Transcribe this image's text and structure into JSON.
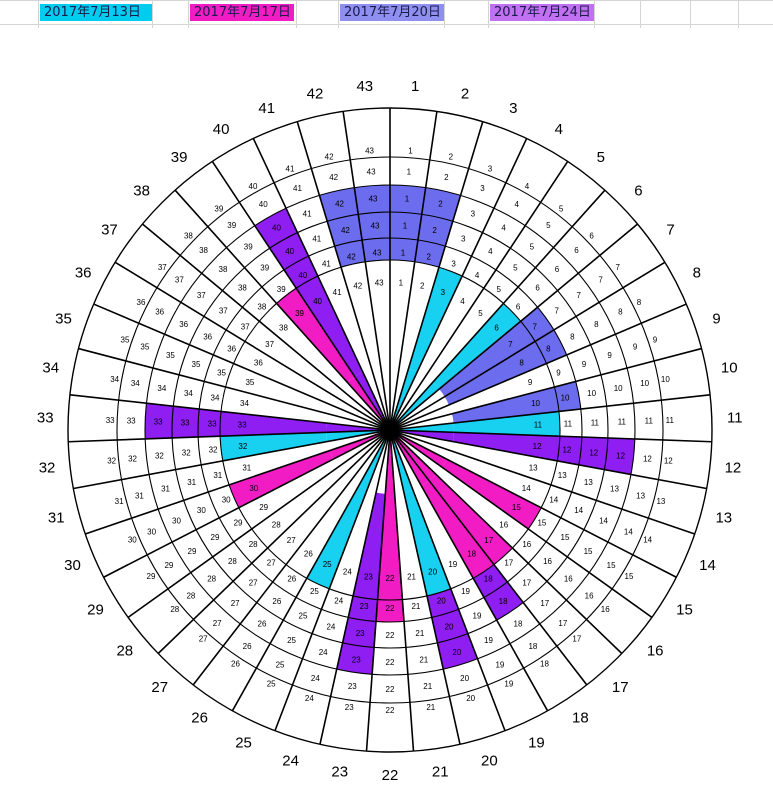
{
  "legend": [
    {
      "label": "2017年7月13日",
      "color": "#00CCF0"
    },
    {
      "label": "2017年7月17日",
      "color": "#F21CC4"
    },
    {
      "label": "2017年7月20日",
      "color": "#8F8FF0"
    },
    {
      "label": "2017年7月24日",
      "color": "#C070F0"
    }
  ],
  "wheel": {
    "sectors": 43,
    "rings": [
      "ring-1",
      "ring-2",
      "ring-3",
      "ring-4",
      "ring-5",
      "ring-6",
      "ring-7"
    ],
    "ring_colors": {
      "cyan": "#18D0F0",
      "magenta": "#F21CC4",
      "blue": "#6C6CEE",
      "purple": "#8E1EF2"
    },
    "fills": [
      {
        "color": "blue",
        "ring": 5,
        "sectors": [
          1,
          2,
          42,
          43
        ]
      },
      {
        "color": "blue",
        "ring": 4,
        "sectors": [
          1,
          2,
          42,
          43
        ]
      },
      {
        "color": "blue",
        "ring": 3,
        "sectors": [
          1,
          2,
          42,
          43
        ]
      },
      {
        "color": "blue",
        "ring": 3,
        "sectors": [
          7,
          8
        ]
      },
      {
        "color": "blue",
        "ring": 2,
        "sectors": [
          7,
          8
        ]
      },
      {
        "color": "blue",
        "ring": 3,
        "sectors": [
          10
        ]
      },
      {
        "color": "blue",
        "ring": 2,
        "sectors": [
          10
        ]
      },
      {
        "color": "cyan",
        "ring": 2,
        "sectors": [
          3,
          6,
          11,
          20,
          25,
          32
        ]
      },
      {
        "color": "cyan",
        "ring": 1,
        "sectors": [
          3,
          6,
          11,
          20,
          25,
          32
        ]
      },
      {
        "color": "magenta",
        "ring": 2,
        "sectors": [
          15,
          17,
          18,
          22,
          30,
          39
        ]
      },
      {
        "color": "magenta",
        "ring": 1,
        "sectors": [
          15,
          17,
          18,
          22,
          30,
          39
        ]
      },
      {
        "color": "magenta",
        "ring": 3,
        "sectors": [
          22
        ]
      },
      {
        "color": "purple",
        "ring": 5,
        "sectors": [
          40
        ]
      },
      {
        "color": "purple",
        "ring": 4,
        "sectors": [
          40
        ]
      },
      {
        "color": "purple",
        "ring": 3,
        "sectors": [
          40
        ]
      },
      {
        "color": "purple",
        "ring": 2,
        "sectors": [
          40
        ]
      },
      {
        "color": "purple",
        "ring": 1,
        "sectors": [
          40
        ]
      },
      {
        "color": "purple",
        "ring": 5,
        "sectors": [
          12,
          33
        ]
      },
      {
        "color": "purple",
        "ring": 4,
        "sectors": [
          12,
          33
        ]
      },
      {
        "color": "purple",
        "ring": 3,
        "sectors": [
          12,
          33
        ]
      },
      {
        "color": "purple",
        "ring": 2,
        "sectors": [
          12,
          33
        ]
      },
      {
        "color": "purple",
        "ring": 1,
        "sectors": [
          12,
          33
        ]
      },
      {
        "color": "purple",
        "ring": 5,
        "sectors": [
          20,
          23
        ]
      },
      {
        "color": "purple",
        "ring": 4,
        "sectors": [
          20,
          23
        ]
      },
      {
        "color": "purple",
        "ring": 3,
        "sectors": [
          20,
          23
        ]
      },
      {
        "color": "purple",
        "ring": 2,
        "sectors": [
          23
        ]
      },
      {
        "color": "purple",
        "ring": 4,
        "sectors": [
          18
        ]
      },
      {
        "color": "purple",
        "ring": 3,
        "sectors": [
          18
        ]
      }
    ]
  }
}
